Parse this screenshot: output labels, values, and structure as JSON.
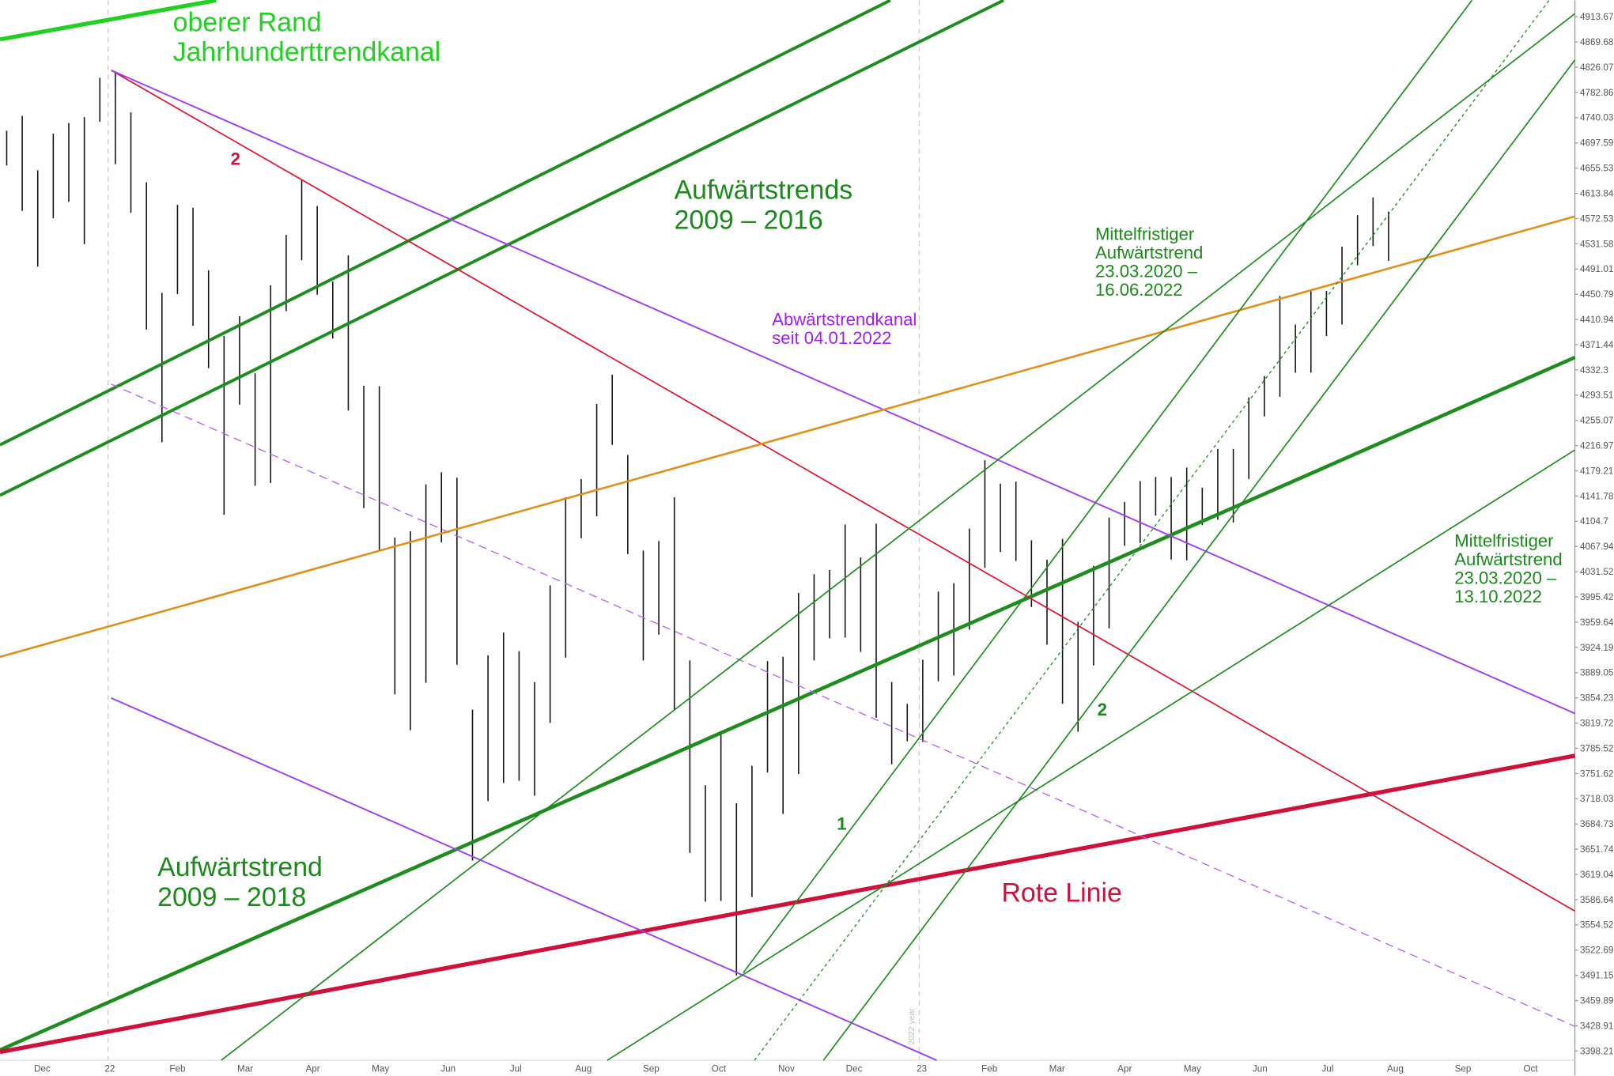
{
  "chart_data": {
    "type": "ohlc",
    "log_scale": true,
    "bar_color": "#111111",
    "categories": [
      "Dec",
      "22",
      "Feb",
      "Mar",
      "Apr",
      "May",
      "Jun",
      "Jul",
      "Aug",
      "Sep",
      "Oct",
      "Nov",
      "Dec",
      "23",
      "Feb",
      "Mar",
      "Apr",
      "May",
      "Jun",
      "Jul",
      "Aug",
      "Sep",
      "Oct"
    ],
    "ylim": [
      3387,
      4942.6
    ],
    "yticks": [
      4913.67,
      4869.68,
      4826.07,
      4782.86,
      4740.03,
      4697.59,
      4655.53,
      4613.84,
      4572.53,
      4531.58,
      4491.01,
      4450.79,
      4410.94,
      4371.44,
      4332.3,
      4293.51,
      4255.07,
      4216.97,
      4179.21,
      4141.78,
      4104.7,
      4067.94,
      4031.52,
      3995.42,
      3959.64,
      3924.19,
      3889.05,
      3854.23,
      3819.72,
      3785.52,
      3751.62,
      3718.03,
      3684.73,
      3651.74,
      3619.04,
      3586.64,
      3554.52,
      3522.69,
      3491.15,
      3459.89,
      3428.91,
      3398.21
    ],
    "high": [
      4718,
      4743,
      4652,
      4713,
      4731,
      4741,
      4808,
      4818,
      4749,
      4632,
      4453,
      4595,
      4590,
      4489,
      4385,
      4416,
      4327,
      4465,
      4546,
      4637,
      4593,
      4471,
      4513,
      4308,
      4307,
      4081,
      4090,
      4159,
      4177,
      4169,
      3838,
      3913,
      3945,
      3919,
      3876,
      4012,
      4140,
      4167,
      4280,
      4325,
      4203,
      4062,
      4076,
      4140,
      3906,
      3736,
      3806,
      3712,
      3762,
      3905,
      3911,
      4001,
      4028,
      4034,
      4100,
      4052,
      4101,
      3876,
      3846,
      3907,
      4003,
      4015,
      4094,
      4195,
      4160,
      4163,
      4077,
      4049,
      4079,
      3960,
      4040,
      4110,
      4133,
      4164,
      4170,
      4170,
      4184,
      4154,
      4212,
      4212,
      4290,
      4323,
      4448,
      4403,
      4458,
      4456,
      4527,
      4578,
      4607,
      4584
    ],
    "low": [
      4660,
      4585,
      4495,
      4573,
      4600,
      4531,
      4733,
      4662,
      4582,
      4395,
      4222,
      4451,
      4401,
      4335,
      4114,
      4279,
      4157,
      4161,
      4424,
      4505,
      4450,
      4381,
      4270,
      4124,
      4062,
      3859,
      3810,
      3875,
      4074,
      3900,
      3637,
      3715,
      3739,
      3742,
      3722,
      3820,
      3910,
      4080,
      4112,
      4218,
      4057,
      3906,
      3942,
      3837,
      3647,
      3584,
      3585,
      3491,
      3590,
      3753,
      3698,
      3751,
      3906,
      3937,
      3938,
      3918,
      3827,
      3764,
      3795,
      3794,
      3877,
      3885,
      3949,
      4037,
      4060,
      4047,
      3981,
      3928,
      3846,
      3808,
      3899,
      3951,
      4069,
      4073,
      4113,
      4049,
      4048,
      4099,
      4107,
      4103,
      4167,
      4261,
      4291,
      4328,
      4328,
      4385,
      4403,
      4497,
      4528,
      4504
    ],
    "annotations": [
      {
        "lines": [
          "oberer Rand",
          "Jahrhunderttrendkanal"
        ],
        "color": "#22d022"
      },
      {
        "lines": [
          "Aufwärtstrends",
          "2009 – 2016"
        ],
        "color": "#1a8a1a"
      },
      {
        "lines": [
          "2"
        ],
        "color": "#d0103a"
      },
      {
        "lines": [
          "Abwärtstrendkanal",
          "seit 04.01.2022"
        ],
        "color": "#a020f0"
      },
      {
        "lines": [
          "Mittelfristiger",
          "Aufwärtstrend",
          "23.03.2020 –",
          "16.06.2022"
        ],
        "color": "#1a8a1a"
      },
      {
        "lines": [
          "Aufwärtstrend",
          "2009 – 2018"
        ],
        "color": "#1a8a1a"
      },
      {
        "lines": [
          "1"
        ],
        "color": "#1a8a1a"
      },
      {
        "lines": [
          "2"
        ],
        "color": "#1a8a1a"
      },
      {
        "lines": [
          "Rote Linie"
        ],
        "color": "#d0103a"
      },
      {
        "lines": [
          "Mittelfristiger",
          "Aufwärtstrend",
          "23.03.2020 –",
          "13.10.2022"
        ],
        "color": "#1a8a1a"
      },
      {
        "lines": [
          "2022 year"
        ],
        "color": "#bbbbbb"
      }
    ]
  }
}
